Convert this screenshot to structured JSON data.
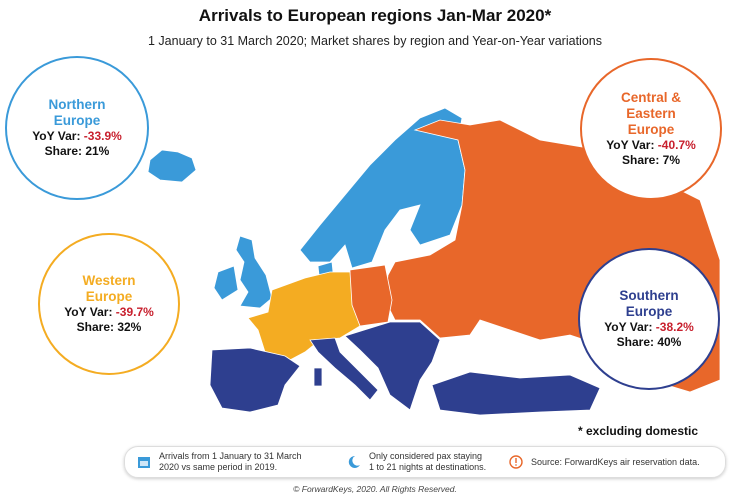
{
  "title": "Arrivals to European regions Jan-Mar 2020*",
  "subtitle": "1 January to 31 March 2020; Market shares by region and Year-on-Year variations",
  "colors": {
    "northern": "#3a9ad9",
    "central": "#e8672a",
    "western": "#f4ac22",
    "southern": "#2e3f8f",
    "negative": "#c8202e"
  },
  "regions": {
    "northern": {
      "name_line1": "Northern",
      "name_line2": "Europe",
      "yoy_label": "YoY Var:",
      "yoy_value": "-33.9%",
      "share": "Share: 21%"
    },
    "central": {
      "name_line1": "Central &",
      "name_line2": "Eastern",
      "name_line3": "Europe",
      "yoy_label": "YoY Var:",
      "yoy_value": "-40.7%",
      "share": "Share: 7%"
    },
    "western": {
      "name_line1": "Western",
      "name_line2": "Europe",
      "yoy_label": "YoY Var:",
      "yoy_value": "-39.7%",
      "share": "Share: 32%"
    },
    "southern": {
      "name_line1": "Southern",
      "name_line2": "Europe",
      "yoy_label": "YoY Var:",
      "yoy_value": "-38.2%",
      "share": "Share: 40%"
    }
  },
  "note": "* excluding domestic",
  "footer": {
    "item1": {
      "icon": "calendar-icon",
      "line1": "Arrivals from 1 January to 31 March",
      "line2": "2020 vs same period in 2019."
    },
    "item2": {
      "icon": "moon-icon",
      "line1": "Only considered pax staying",
      "line2": "1 to 21 nights at destinations."
    },
    "item3": {
      "icon": "warning-icon",
      "line1": "Source: ForwardKeys air reservation data."
    }
  },
  "copyright": "© ForwardKeys, 2020. All Rights Reserved."
}
